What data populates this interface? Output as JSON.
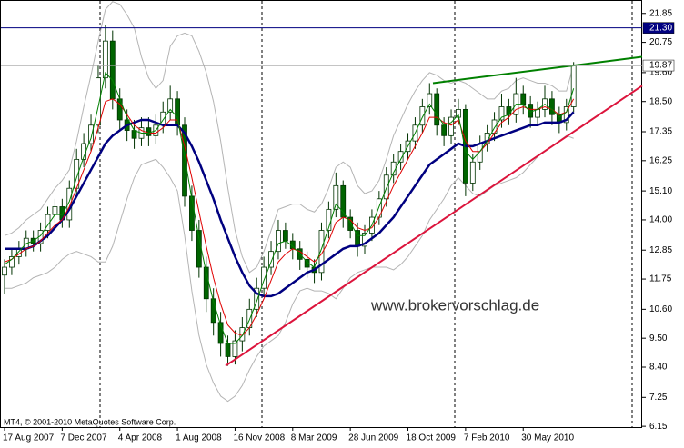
{
  "chart_data": {
    "type": "candlestick",
    "watermark": "www.brokervorschlag.de",
    "footer": "MT4, © 2001-2010 MetaQuotes Software Corp.",
    "ylim": [
      6.12,
      22.36
    ],
    "yticks": [
      21.85,
      20.75,
      {
        "value": 19.6,
        "label": "19.60"
      },
      {
        "value": 18.5,
        "label": "18.50"
      },
      17.35,
      16.25,
      {
        "value": 15.1,
        "label": "15.10"
      },
      {
        "value": 14,
        "label": "14.00"
      },
      12.85,
      11.75,
      {
        "value": 10.6,
        "label": "10.60"
      },
      {
        "value": 9.5,
        "label": "9.50"
      },
      {
        "value": 8.4,
        "label": "8.40"
      },
      7.25,
      6.15
    ],
    "categories": [
      "17 Aug 2007",
      null,
      null,
      null,
      null,
      null,
      null,
      null,
      "7 Dec 2007",
      null,
      null,
      null,
      null,
      null,
      null,
      null,
      "4 Apr 2008",
      null,
      null,
      null,
      null,
      null,
      null,
      null,
      "1 Aug 2008",
      null,
      null,
      null,
      null,
      null,
      null,
      null,
      "16 Nov 2008",
      null,
      null,
      null,
      null,
      null,
      null,
      null,
      "8 Mar 2009",
      null,
      null,
      null,
      null,
      null,
      null,
      null,
      "28 Jun 2009",
      null,
      null,
      null,
      null,
      null,
      null,
      null,
      "18 Oct 2009",
      null,
      null,
      null,
      null,
      null,
      null,
      null,
      "7 Feb 2010",
      null,
      null,
      null,
      null,
      null,
      null,
      null,
      "30 May 2010",
      null,
      null,
      null,
      null,
      null,
      null,
      null
    ],
    "up_color": "#ffffff",
    "down_color": "#006400",
    "wick_color": "#003300",
    "open": [
      11.9,
      12.2,
      12.6,
      12.9,
      13.3,
      13.1,
      13.6,
      14.2,
      14.5,
      14.0,
      15.2,
      16.3,
      16.9,
      17.6,
      19.4,
      20.8,
      18.6,
      17.8,
      17.4,
      17.1,
      17.5,
      17.2,
      17.6,
      18.1,
      18.6,
      17.6,
      14.9,
      13.6,
      12.2,
      11.0,
      10.1,
      9.3,
      8.8,
      9.4,
      9.9,
      10.6,
      11.4,
      12.2,
      12.8,
      13.6,
      13.2,
      12.9,
      12.5,
      12.2,
      12.0,
      13.6,
      14.4,
      15.3,
      14.1,
      13.6,
      13.0,
      13.5,
      14.1,
      14.8,
      15.7,
      16.2,
      16.6,
      17.0,
      17.6,
      18.3,
      18.8,
      17.6,
      17.2,
      17.9,
      18.2,
      15.4,
      16.2,
      16.9,
      17.3,
      17.8,
      18.3,
      18.0,
      18.8,
      18.4,
      17.9,
      18.2,
      18.6,
      18.0,
      17.7,
      18.3
    ],
    "high": [
      12.5,
      12.9,
      13.2,
      13.6,
      13.6,
      13.9,
      14.5,
      14.8,
      14.8,
      15.5,
      16.7,
      17.3,
      18.0,
      19.9,
      21.4,
      21.2,
      19.0,
      18.2,
      17.8,
      17.9,
      17.9,
      18.0,
      18.5,
      19.1,
      18.9,
      17.9,
      15.3,
      14.0,
      12.6,
      11.4,
      10.5,
      9.6,
      9.8,
      10.3,
      11.0,
      11.8,
      12.6,
      13.2,
      14.0,
      13.9,
      13.5,
      13.2,
      12.8,
      12.5,
      13.9,
      14.7,
      15.8,
      15.5,
      14.4,
      13.9,
      13.8,
      14.4,
      15.1,
      16.0,
      16.5,
      16.9,
      17.3,
      17.9,
      18.6,
      19.2,
      19.0,
      17.9,
      18.2,
      18.6,
      18.4,
      16.5,
      17.2,
      17.6,
      18.1,
      18.8,
      18.6,
      19.4,
      19.1,
      18.7,
      18.5,
      19.1,
      18.9,
      18.3,
      18.6,
      20.0
    ],
    "low": [
      11.2,
      11.9,
      12.3,
      12.6,
      12.8,
      12.8,
      13.3,
      13.9,
      13.7,
      13.7,
      14.9,
      16.0,
      16.6,
      17.3,
      19.0,
      18.2,
      17.4,
      17.0,
      16.7,
      16.8,
      16.8,
      16.9,
      17.3,
      17.8,
      17.2,
      14.5,
      13.2,
      11.8,
      10.5,
      9.6,
      8.8,
      8.45,
      8.5,
      9.0,
      9.6,
      10.3,
      11.1,
      11.9,
      12.5,
      12.9,
      12.5,
      12.1,
      11.8,
      11.6,
      11.7,
      13.3,
      14.1,
      13.7,
      13.3,
      12.6,
      12.7,
      13.2,
      13.8,
      14.5,
      15.4,
      15.9,
      16.3,
      16.7,
      17.3,
      18.0,
      17.2,
      16.8,
      16.9,
      17.6,
      14.9,
      15.1,
      15.9,
      16.6,
      17.0,
      17.5,
      17.6,
      17.7,
      18.0,
      17.5,
      17.6,
      17.9,
      17.6,
      17.3,
      17.4,
      18.1
    ],
    "close": [
      12.2,
      12.6,
      12.9,
      13.3,
      13.1,
      13.6,
      14.2,
      14.5,
      14.0,
      15.2,
      16.3,
      16.9,
      17.6,
      19.4,
      20.8,
      18.6,
      17.8,
      17.4,
      17.1,
      17.5,
      17.2,
      17.6,
      18.1,
      18.6,
      17.6,
      14.9,
      13.6,
      12.2,
      11.0,
      10.1,
      9.3,
      8.8,
      9.4,
      9.9,
      10.6,
      11.4,
      12.2,
      12.8,
      13.6,
      13.2,
      12.9,
      12.5,
      12.2,
      12.0,
      13.6,
      14.4,
      15.3,
      14.1,
      13.6,
      13.0,
      13.5,
      14.1,
      14.8,
      15.7,
      16.2,
      16.6,
      17.0,
      17.6,
      18.3,
      18.8,
      17.6,
      17.2,
      17.9,
      18.2,
      15.4,
      16.2,
      16.9,
      17.3,
      17.8,
      18.3,
      18.0,
      18.8,
      18.4,
      17.9,
      18.2,
      18.6,
      18.0,
      17.7,
      18.3,
      19.87
    ],
    "bands": [
      {
        "color": "#b4b4b4",
        "values": [
          13.4,
          13.5,
          13.7,
          14.0,
          14.2,
          14.4,
          14.8,
          15.2,
          15.5,
          15.9,
          17.0,
          18.3,
          19.5,
          20.8,
          22.0,
          22.3,
          22.2,
          21.8,
          21.3,
          20.2,
          19.4,
          19.0,
          19.3,
          20.6,
          21.0,
          21.1,
          21.0,
          20.4,
          19.6,
          18.5,
          17.0,
          15.2,
          13.6,
          12.6,
          12.0,
          12.2,
          12.8,
          13.6,
          14.4,
          14.5,
          14.6,
          14.6,
          14.4,
          14.3,
          14.6,
          15.2,
          16.0,
          16.2,
          16.0,
          15.3,
          15.0,
          15.1,
          15.5,
          16.3,
          17.2,
          17.8,
          18.4,
          18.9,
          19.3,
          19.6,
          19.5,
          19.3,
          19.2,
          19.3,
          19.2,
          19.0,
          18.8,
          18.6,
          18.6,
          18.9,
          19.0,
          19.3,
          19.4,
          19.3,
          19.2,
          19.2,
          19.1,
          18.9,
          18.9,
          19.9
        ]
      },
      {
        "color": "#b4b4b4",
        "values": [
          11.4,
          11.4,
          11.5,
          11.6,
          11.8,
          11.9,
          12.0,
          12.2,
          12.5,
          12.7,
          12.8,
          12.7,
          12.6,
          12.4,
          12.4,
          13.0,
          13.9,
          14.8,
          15.6,
          16.1,
          16.2,
          16.3,
          16.0,
          15.6,
          15.1,
          13.4,
          11.3,
          9.6,
          8.5,
          7.8,
          7.3,
          7.1,
          7.3,
          7.7,
          8.3,
          8.8,
          9.2,
          9.4,
          9.6,
          10.1,
          10.8,
          11.3,
          11.4,
          11.3,
          11.3,
          11.2,
          11.0,
          11.4,
          11.8,
          12.0,
          12.1,
          12.2,
          12.2,
          12.2,
          12.1,
          12.3,
          12.6,
          13.0,
          13.4,
          14.0,
          14.4,
          14.8,
          15.3,
          15.6,
          15.3,
          15.0,
          14.9,
          15.1,
          15.3,
          15.4,
          15.5,
          15.6,
          15.8,
          16.1,
          16.4,
          16.6,
          16.8,
          17.0,
          17.2,
          17.1
        ]
      }
    ],
    "lines": [
      {
        "color": "#000080",
        "width": 2.5,
        "values": [
          12.9,
          12.9,
          12.9,
          12.9,
          13.0,
          13.2,
          13.4,
          13.7,
          14.0,
          14.4,
          14.9,
          15.4,
          15.9,
          16.4,
          16.9,
          17.2,
          17.4,
          17.6,
          17.7,
          17.8,
          17.8,
          17.7,
          17.6,
          17.6,
          17.6,
          17.3,
          16.8,
          16.2,
          15.5,
          14.8,
          14.0,
          13.3,
          12.6,
          12.0,
          11.5,
          11.2,
          11.1,
          11.1,
          11.2,
          11.4,
          11.6,
          11.8,
          12.0,
          12.1,
          12.3,
          12.5,
          12.7,
          12.9,
          13.0,
          13.0,
          13.1,
          13.3,
          13.5,
          13.8,
          14.1,
          14.5,
          14.9,
          15.3,
          15.7,
          16.1,
          16.3,
          16.5,
          16.7,
          16.9,
          16.8,
          16.8,
          16.9,
          17.0,
          17.1,
          17.2,
          17.3,
          17.4,
          17.5,
          17.6,
          17.6,
          17.7,
          17.7,
          17.7,
          17.8,
          18.1
        ]
      },
      {
        "color": "#e00000",
        "width": 1,
        "values": [
          12.4,
          12.5,
          12.7,
          12.9,
          13.0,
          13.2,
          13.5,
          13.8,
          14.0,
          14.5,
          15.2,
          15.9,
          16.6,
          17.5,
          18.5,
          18.6,
          18.4,
          18.0,
          17.6,
          17.4,
          17.3,
          17.3,
          17.5,
          17.8,
          17.8,
          16.8,
          15.6,
          14.3,
          13.0,
          11.8,
          10.8,
          10.0,
          9.7,
          9.6,
          9.9,
          10.4,
          11.0,
          11.7,
          12.4,
          12.7,
          12.9,
          12.8,
          12.6,
          12.4,
          12.7,
          13.2,
          13.9,
          14.1,
          14.0,
          13.7,
          13.6,
          13.7,
          14.1,
          14.7,
          15.3,
          15.8,
          16.3,
          16.8,
          17.3,
          17.9,
          17.9,
          17.7,
          17.6,
          17.8,
          17.0,
          16.6,
          16.6,
          16.9,
          17.3,
          17.7,
          17.9,
          18.2,
          18.3,
          18.2,
          18.2,
          18.3,
          18.2,
          18.0,
          18.1,
          18.6
        ]
      },
      {
        "color": "#008000",
        "width": 1,
        "values": [
          12.3,
          12.5,
          12.8,
          13.1,
          13.2,
          13.4,
          13.8,
          14.2,
          14.2,
          14.7,
          15.6,
          16.4,
          17.1,
          18.3,
          19.6,
          19.3,
          18.6,
          17.9,
          17.4,
          17.3,
          17.3,
          17.4,
          17.8,
          18.2,
          17.9,
          16.4,
          14.8,
          13.3,
          12.0,
          10.9,
          10.0,
          9.3,
          9.3,
          9.6,
          10.2,
          10.9,
          11.7,
          12.4,
          13.1,
          13.2,
          13.0,
          12.7,
          12.4,
          12.2,
          12.9,
          13.7,
          14.6,
          14.3,
          13.9,
          13.4,
          13.4,
          13.8,
          14.5,
          15.2,
          15.8,
          16.3,
          16.8,
          17.3,
          17.9,
          18.4,
          18.0,
          17.6,
          17.7,
          18.0,
          16.6,
          16.3,
          16.6,
          17.0,
          17.5,
          17.9,
          18.0,
          18.4,
          18.4,
          18.1,
          18.2,
          18.4,
          18.2,
          17.9,
          18.1,
          19.0
        ]
      }
    ],
    "trend_lines": [
      {
        "color": "#dc143c",
        "start": 8.45,
        "end": 19.1
      },
      {
        "color": "#008000",
        "start": 19.2,
        "end": 20.2
      }
    ],
    "price_lines": [
      {
        "value": 21.3,
        "label": "21.30",
        "color": "#000080",
        "box": "#000080",
        "text_color": "#ffffff"
      },
      {
        "value": 19.87,
        "label": "19.87",
        "color": "#a0a0a0",
        "box": "#ffffff",
        "text_color": "#000000"
      }
    ]
  }
}
